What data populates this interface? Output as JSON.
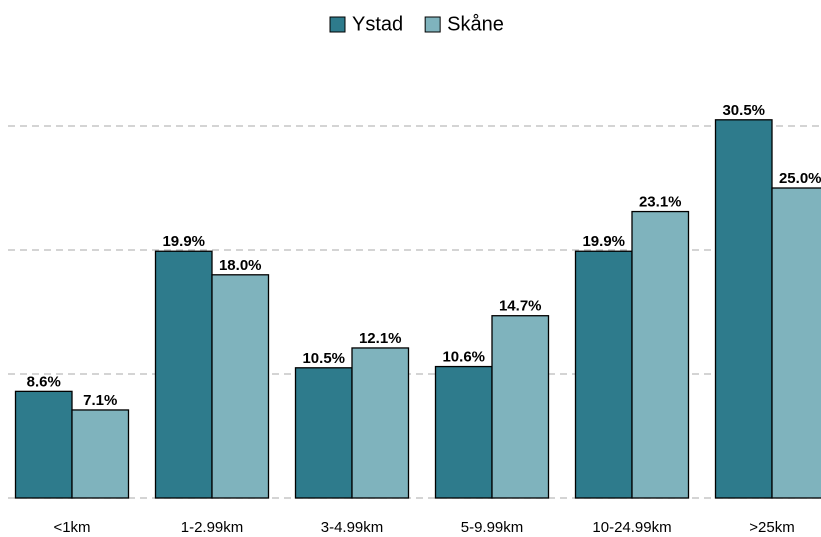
{
  "chart_data": {
    "type": "bar",
    "categories": [
      "<1km",
      "1-2.99km",
      "3-4.99km",
      "5-9.99km",
      "10-24.99km",
      ">25km"
    ],
    "series": [
      {
        "name": "Ystad",
        "color": "#2e7b8c",
        "values": [
          8.6,
          19.9,
          10.5,
          10.6,
          19.9,
          30.5
        ],
        "value_labels": [
          "8.6%",
          "19.9%",
          "10.5%",
          "10.6%",
          "19.9%",
          "30.5%"
        ]
      },
      {
        "name": "Skåne",
        "color": "#7fb3bd",
        "values": [
          7.1,
          18.0,
          12.1,
          14.7,
          23.1,
          25.0
        ],
        "value_labels": [
          "7.1%",
          "18.0%",
          "12.1%",
          "14.7%",
          "23.1%",
          "25.0%"
        ]
      }
    ],
    "ylim": [
      0,
      34
    ],
    "yticks": [
      0,
      10,
      20,
      30
    ],
    "grid": true,
    "legend": "top"
  }
}
